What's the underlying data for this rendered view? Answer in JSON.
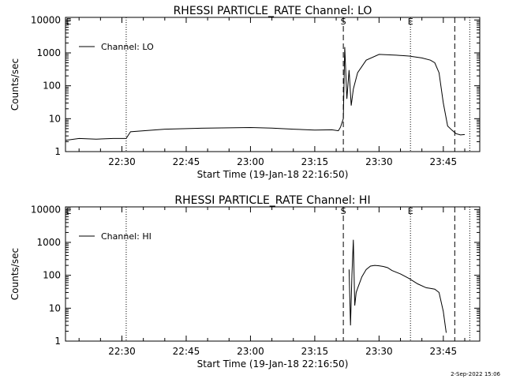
{
  "footer_date": "2-Sep-2022 15:06",
  "chart_data": [
    {
      "type": "line",
      "title": "RHESSI PARTICLE_RATE Channel: LO",
      "xlabel": "Start Time (19-Jan-18 22:16:50)",
      "ylabel": "Counts/sec",
      "y_scale": "log",
      "xlim": [
        "22:16:50",
        "23:53:30"
      ],
      "ylim": [
        1,
        12000
      ],
      "x_tick_labels": [
        "22:30",
        "22:45",
        "23:00",
        "23:15",
        "23:30",
        "23:45"
      ],
      "y_tick_labels": [
        "1",
        "10",
        "100",
        "1000",
        "10000"
      ],
      "legend": {
        "label": "Channel: LO",
        "position": "top-left"
      },
      "markers": {
        "dotted": [
          "22:31:00",
          "23:37:20",
          "23:51:10"
        ],
        "dashed": [
          "23:21:40",
          "23:47:40"
        ],
        "letters": [
          {
            "text": "S",
            "time": "23:21:40"
          },
          {
            "text": "E",
            "time": "23:37:20"
          }
        ]
      },
      "series": [
        {
          "name": "Channel: LO",
          "x": [
            "22:16:50",
            "22:20:00",
            "22:24:00",
            "22:28:00",
            "22:30:00",
            "22:31:00",
            "22:32:00",
            "22:40:00",
            "22:50:00",
            "23:00:00",
            "23:05:00",
            "23:10:00",
            "23:15:00",
            "23:19:00",
            "23:20:30",
            "23:21:00",
            "23:21:40",
            "23:22:00",
            "23:22:30",
            "23:23:00",
            "23:23:30",
            "23:24:00",
            "23:25:00",
            "23:27:00",
            "23:30:00",
            "23:34:00",
            "23:37:00",
            "23:40:00",
            "23:42:00",
            "23:43:00",
            "23:44:00",
            "23:45:00",
            "23:46:00",
            "23:47:00",
            "23:48:00",
            "23:49:00",
            "23:50:00"
          ],
          "y": [
            2.2,
            2.5,
            2.4,
            2.5,
            2.5,
            2.5,
            4,
            4.8,
            5.2,
            5.4,
            5.2,
            4.8,
            4.5,
            4.6,
            4.3,
            5.5,
            10,
            1500,
            40,
            300,
            25,
            80,
            250,
            600,
            900,
            850,
            800,
            700,
            600,
            500,
            250,
            30,
            6,
            4.5,
            3.5,
            3.2,
            3.3
          ]
        }
      ]
    },
    {
      "type": "line",
      "title": "RHESSI PARTICLE_RATE Channel: HI",
      "xlabel": "Start Time (19-Jan-18 22:16:50)",
      "ylabel": "Counts/sec",
      "y_scale": "log",
      "xlim": [
        "22:16:50",
        "23:53:30"
      ],
      "ylim": [
        1,
        12000
      ],
      "x_tick_labels": [
        "22:30",
        "22:45",
        "23:00",
        "23:15",
        "23:30",
        "23:45"
      ],
      "y_tick_labels": [
        "1",
        "10",
        "100",
        "1000",
        "10000"
      ],
      "legend": {
        "label": "Channel: HI",
        "position": "top-left"
      },
      "markers": {
        "dotted": [
          "22:31:00",
          "23:37:20",
          "23:51:10"
        ],
        "dashed": [
          "23:21:40",
          "23:47:40"
        ],
        "letters": [
          {
            "text": "S",
            "time": "23:21:40"
          },
          {
            "text": "E",
            "time": "23:37:20"
          }
        ]
      },
      "series": [
        {
          "name": "Channel: HI",
          "x": [
            "23:23:00",
            "23:23:20",
            "23:23:40",
            "23:24:00",
            "23:24:20",
            "23:24:40",
            "23:25:00",
            "23:26:00",
            "23:27:00",
            "23:28:00",
            "23:29:00",
            "23:30:00",
            "23:31:00",
            "23:32:00",
            "23:33:00",
            "23:35:00",
            "23:37:00",
            "23:39:00",
            "23:41:00",
            "23:42:00",
            "23:43:00",
            "23:44:00",
            "23:45:00",
            "23:45:40"
          ],
          "y": [
            150,
            3,
            100,
            1200,
            12,
            30,
            40,
            90,
            150,
            190,
            200,
            195,
            185,
            170,
            140,
            110,
            80,
            55,
            42,
            40,
            38,
            30,
            8,
            1.8
          ]
        }
      ]
    }
  ]
}
